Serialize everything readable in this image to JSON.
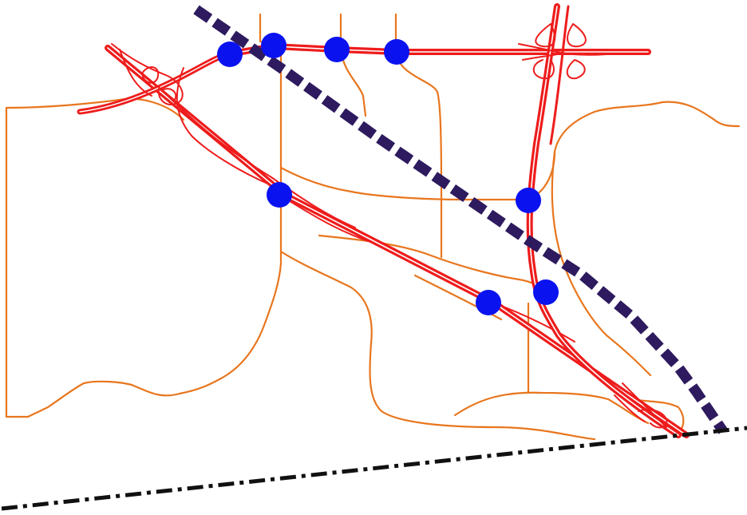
{
  "map": {
    "colors": {
      "background": "#ffffff",
      "highway": "#ee1c1c",
      "highway_casing": "#ffffff",
      "local_road": "#e8761e",
      "rail_line": "#2e1a5e",
      "boundary": "#111111",
      "junction": "#0a12f0"
    },
    "legend_items": [],
    "symbols": {
      "junction": "blue-circle",
      "rail_line": "thick-dashed-purple",
      "boundary": "dash-dot-black"
    },
    "junction_count": 8
  }
}
